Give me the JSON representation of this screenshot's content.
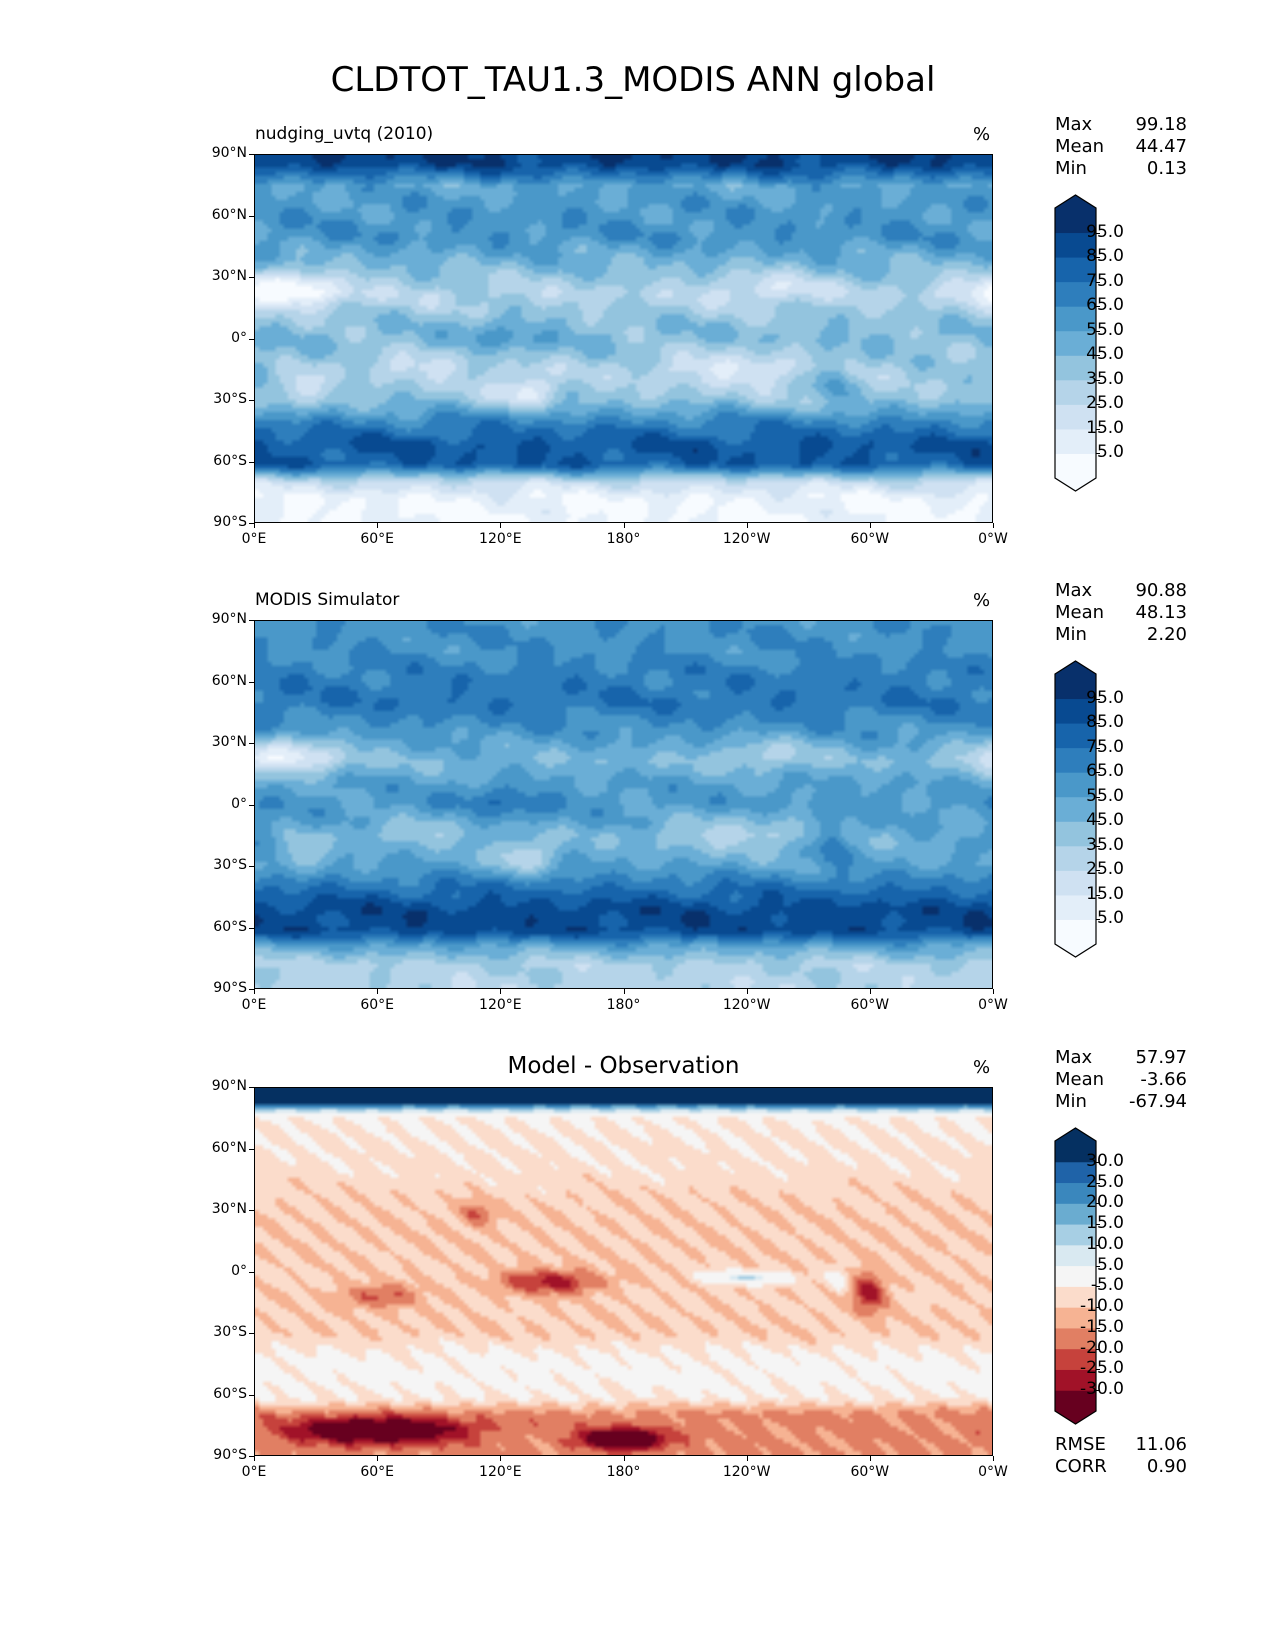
{
  "title": "CLDTOT_TAU1.3_MODIS ANN global",
  "chart_data": [
    {
      "type": "heatmap",
      "kind": "model",
      "title": "nudging_uvtq (2010)",
      "units": "%",
      "stats": {
        "Max": "99.18",
        "Mean": "44.47",
        "Min": "0.13"
      },
      "colorbar": {
        "ticks": [
          "95.0",
          "85.0",
          "75.0",
          "65.0",
          "55.0",
          "45.0",
          "35.0",
          "25.0",
          "15.0",
          "5.0"
        ],
        "levels": [
          5,
          15,
          25,
          35,
          45,
          55,
          65,
          75,
          85,
          95
        ],
        "colors": [
          "#f7fbff",
          "#e3eef9",
          "#cfe1f2",
          "#b5d4e9",
          "#93c4de",
          "#6aaed6",
          "#4a98c9",
          "#2e7ebc",
          "#1764ab",
          "#084a91",
          "#08306b"
        ]
      },
      "xticks": [
        "0°E",
        "60°E",
        "120°E",
        "180°",
        "120°W",
        "60°W",
        "0°W"
      ],
      "yticks": [
        "90°N",
        "60°N",
        "30°N",
        "0°",
        "30°S",
        "60°S",
        "90°S"
      ]
    },
    {
      "type": "heatmap",
      "kind": "obs",
      "title": "MODIS Simulator",
      "units": "%",
      "stats": {
        "Max": "90.88",
        "Mean": "48.13",
        "Min": "2.20"
      },
      "colorbar": {
        "ticks": [
          "95.0",
          "85.0",
          "75.0",
          "65.0",
          "55.0",
          "45.0",
          "35.0",
          "25.0",
          "15.0",
          "5.0"
        ],
        "levels": [
          5,
          15,
          25,
          35,
          45,
          55,
          65,
          75,
          85,
          95
        ],
        "colors": [
          "#f7fbff",
          "#e3eef9",
          "#cfe1f2",
          "#b5d4e9",
          "#93c4de",
          "#6aaed6",
          "#4a98c9",
          "#2e7ebc",
          "#1764ab",
          "#084a91",
          "#08306b"
        ]
      },
      "xticks": [
        "0°E",
        "60°E",
        "120°E",
        "180°",
        "120°W",
        "60°W",
        "0°W"
      ],
      "yticks": [
        "90°N",
        "60°N",
        "30°N",
        "0°",
        "30°S",
        "60°S",
        "90°S"
      ]
    },
    {
      "type": "heatmap",
      "kind": "diff",
      "title": "Model - Observation",
      "units": "%",
      "stats": {
        "Max": "57.97",
        "Mean": "-3.66",
        "Min": "-67.94"
      },
      "extra_stats": {
        "RMSE": "11.06",
        "CORR": "0.90"
      },
      "colorbar": {
        "ticks": [
          "30.0",
          "25.0",
          "20.0",
          "15.0",
          "10.0",
          "5.0",
          "-5.0",
          "-10.0",
          "-15.0",
          "-20.0",
          "-25.0",
          "-30.0"
        ],
        "levels": [
          -30,
          -25,
          -20,
          -15,
          -10,
          -5,
          5,
          10,
          15,
          20,
          25,
          30
        ],
        "colors": [
          "#67001f",
          "#a11228",
          "#c6423c",
          "#e17f63",
          "#f6b393",
          "#fbdccb",
          "#f5f5f5",
          "#d9e9f1",
          "#a7cfe4",
          "#6aacd0",
          "#3a87bd",
          "#1f63a8",
          "#053061"
        ]
      },
      "xticks": [
        "0°E",
        "60°E",
        "120°E",
        "180°",
        "120°W",
        "60°W",
        "0°W"
      ],
      "yticks": [
        "90°N",
        "60°N",
        "30°N",
        "0°",
        "30°S",
        "60°S",
        "90°S"
      ]
    }
  ]
}
